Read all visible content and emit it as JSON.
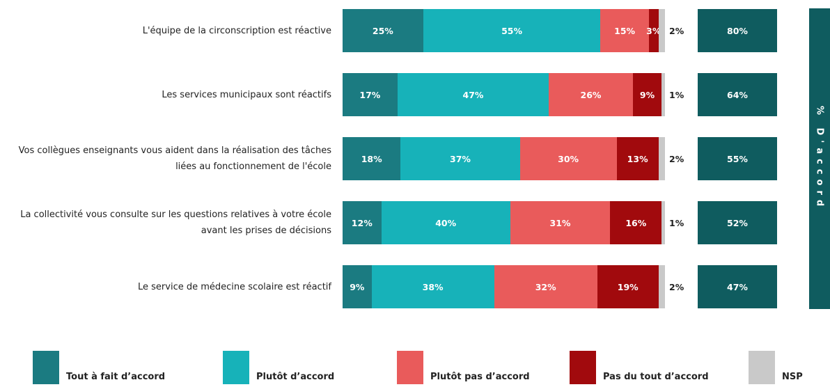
{
  "chart_data": {
    "type": "stacked-bar-horizontal",
    "categories": [
      "L'équipe de la circonscription est réactive",
      "Les services municipaux sont réactifs",
      "Vos collègues enseignants vous aident dans la réalisation des tâches liées au fonctionnement de l'école",
      "La collectivité vous consulte sur les questions relatives à votre école avant les prises de décisions",
      "Le service de médecine scolaire est réactif"
    ],
    "xlim": [
      0,
      100
    ],
    "series": [
      {
        "name": "Tout à fait d’accord",
        "color": "#1b7b81",
        "values": [
          25,
          17,
          18,
          12,
          9
        ],
        "value_labels": [
          "25%",
          "17%",
          "18%",
          "12%",
          "9%"
        ]
      },
      {
        "name": "Plutôt d’accord",
        "color": "#17b2b9",
        "values": [
          55,
          47,
          37,
          40,
          38
        ],
        "value_labels": [
          "55%",
          "47%",
          "37%",
          "40%",
          "38%"
        ]
      },
      {
        "name": "Plutôt pas d’accord",
        "color": "#e95b5b",
        "values": [
          15,
          26,
          30,
          31,
          32
        ],
        "value_labels": [
          "15%",
          "26%",
          "30%",
          "31%",
          "32%"
        ]
      },
      {
        "name": "Pas du tout d’accord",
        "color": "#a10a0d",
        "values": [
          3,
          9,
          13,
          16,
          19
        ],
        "value_labels": [
          "3%",
          "9%",
          "13%",
          "16%",
          "19%"
        ]
      },
      {
        "name": "NSP",
        "color": "#c9c9c9",
        "values": [
          2,
          1,
          2,
          1,
          2
        ],
        "value_labels": [
          "2%",
          "1%",
          "2%",
          "1%",
          "2%"
        ]
      }
    ],
    "totals": {
      "title": "% D'accord",
      "color": "#0f5c5f",
      "values": [
        80,
        64,
        55,
        52,
        47
      ],
      "value_labels": [
        "80%",
        "64%",
        "55%",
        "52%",
        "47%"
      ]
    }
  }
}
